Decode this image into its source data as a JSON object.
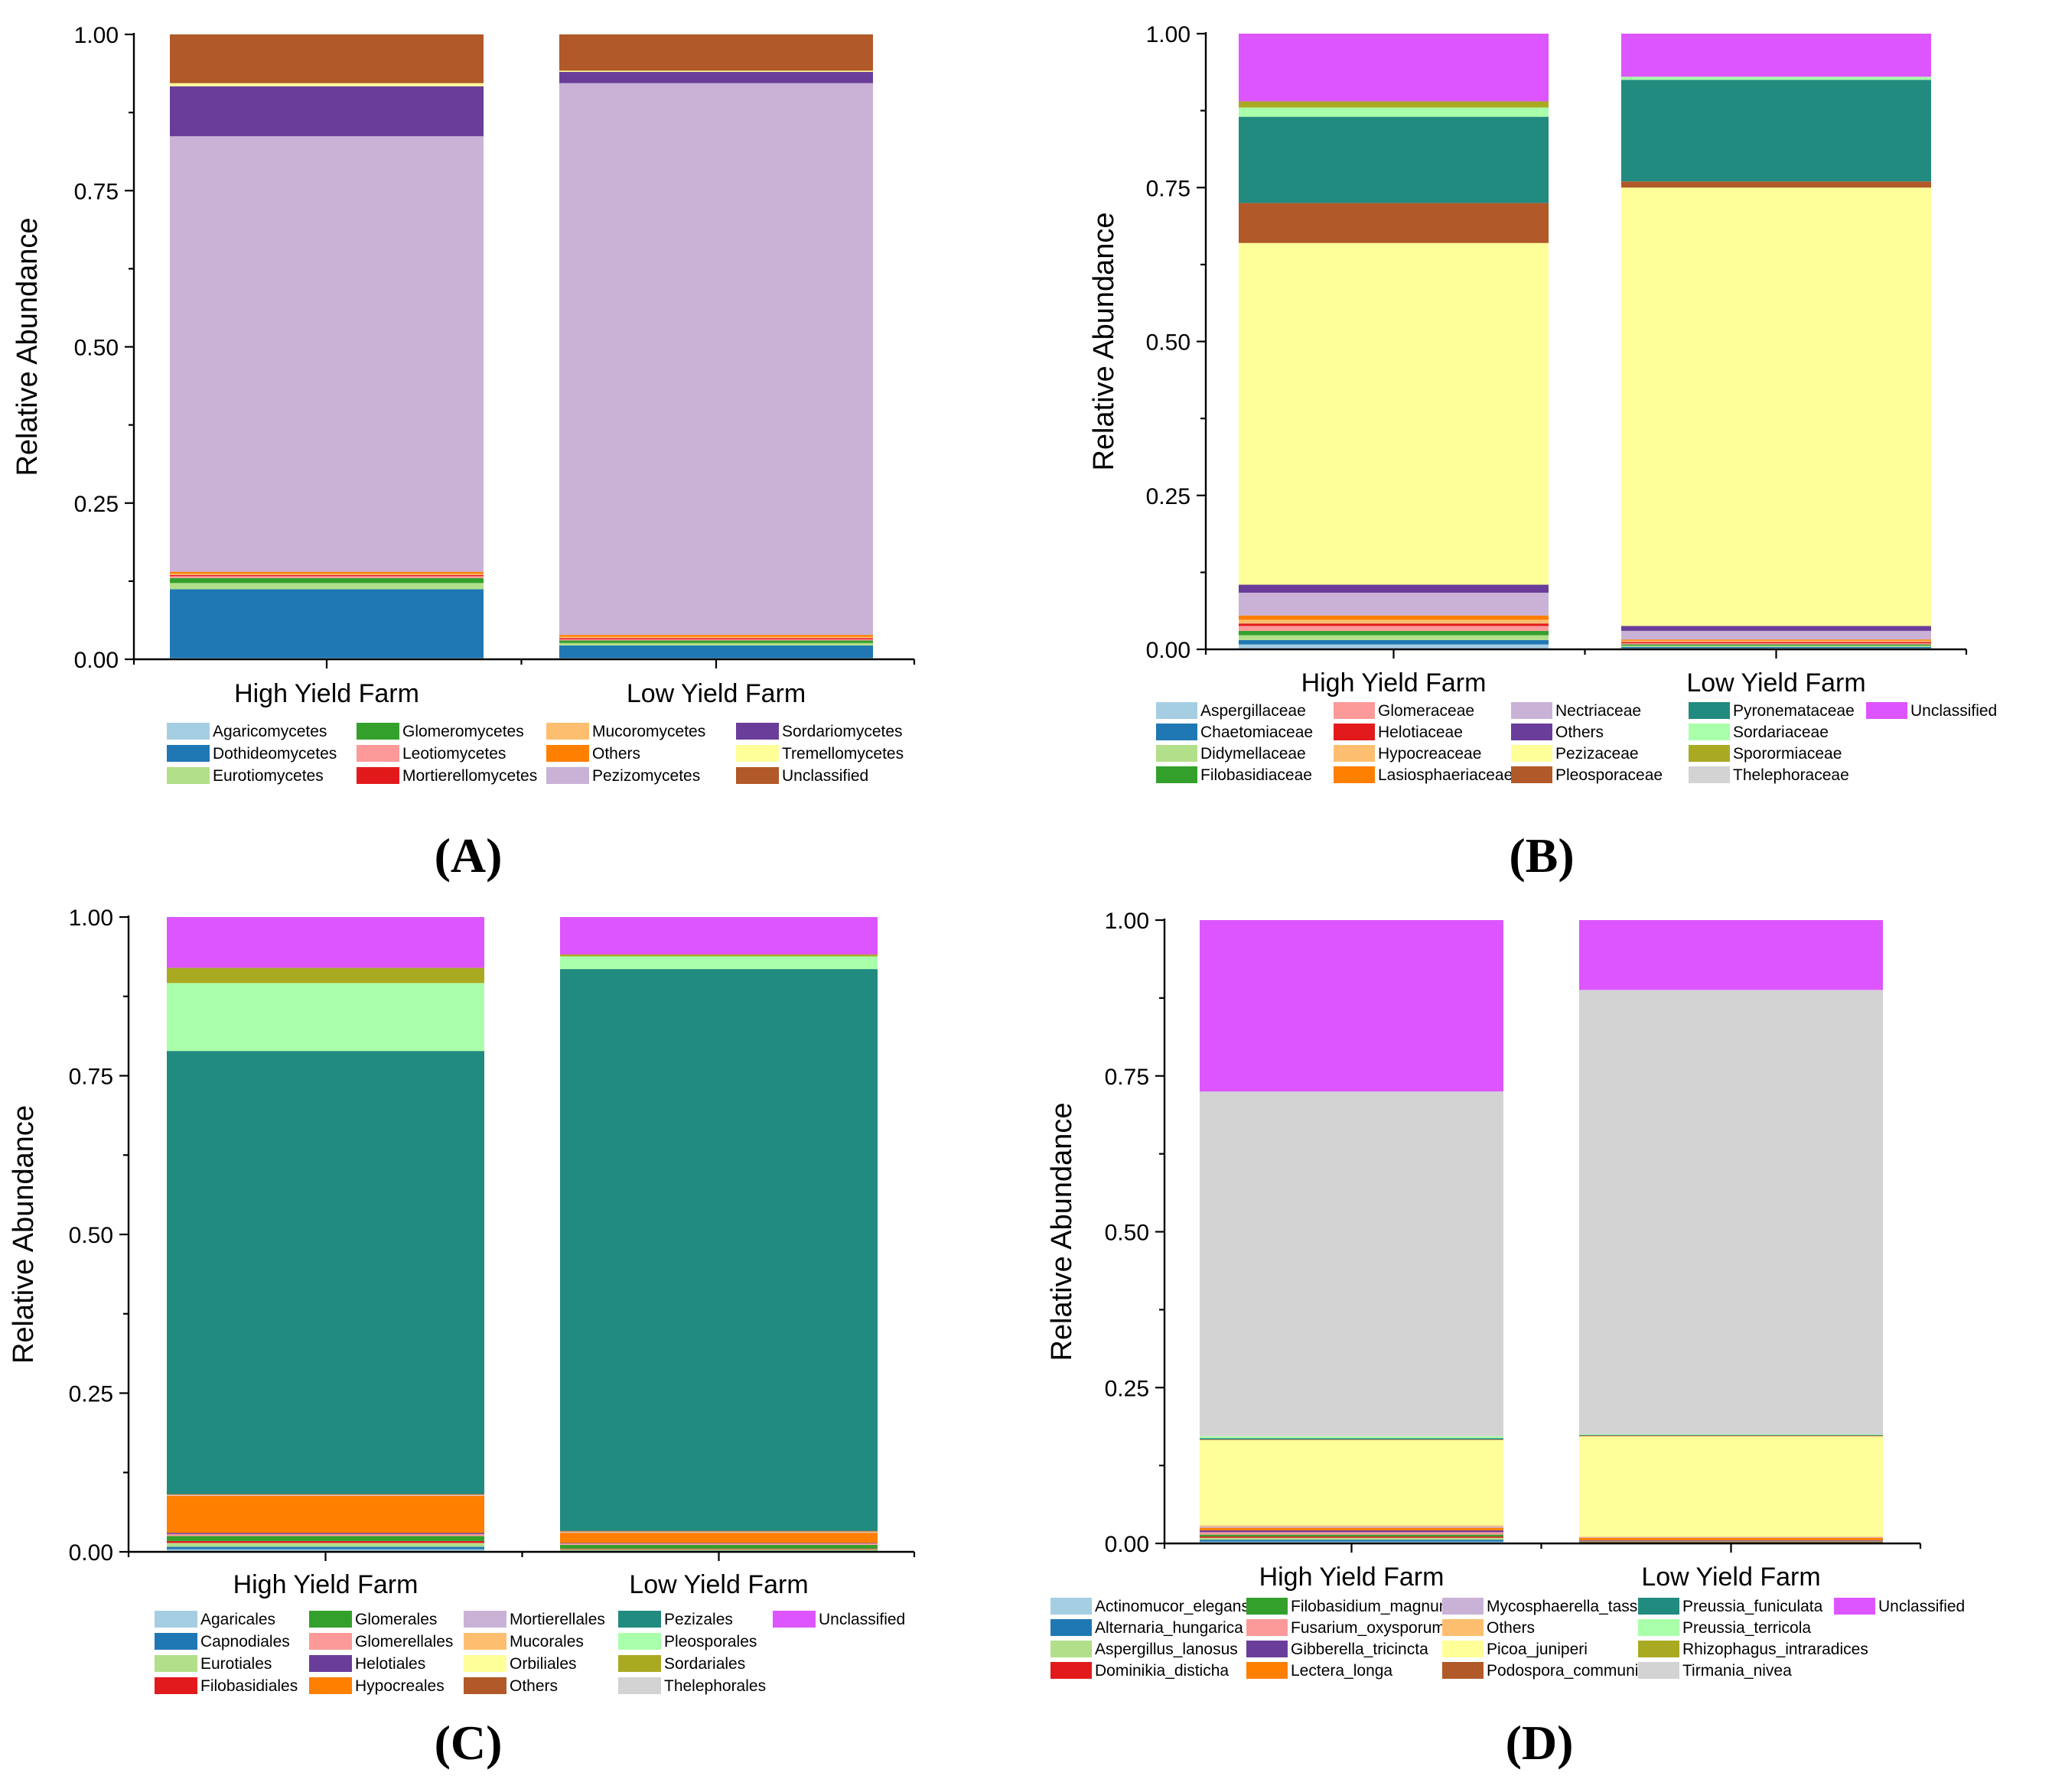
{
  "chart_data": [
    {
      "type": "bar",
      "panel_label": "(A)",
      "ylabel": "Relative Abundance",
      "ylim": [
        0,
        1
      ],
      "yticks": [
        "0.00",
        "0.25",
        "0.50",
        "0.75",
        "1.00"
      ],
      "stacked": true,
      "categories": [
        "High Yield Farm",
        "Low Yield Farm"
      ],
      "series": [
        {
          "name": "Agaricomycetes",
          "color": "#a6cee3",
          "values": [
            0.002,
            0.002
          ]
        },
        {
          "name": "Dothideomycetes",
          "color": "#1f78b4",
          "values": [
            0.11,
            0.02
          ]
        },
        {
          "name": "Eurotiomycetes",
          "color": "#b2df8a",
          "values": [
            0.01,
            0.004
          ]
        },
        {
          "name": "Glomeromycetes",
          "color": "#33a02c",
          "values": [
            0.008,
            0.004
          ]
        },
        {
          "name": "Leotiomycetes",
          "color": "#fb9a99",
          "values": [
            0.003,
            0.002
          ]
        },
        {
          "name": "Mortierellomycetes",
          "color": "#e31a1c",
          "values": [
            0.002,
            0.002
          ]
        },
        {
          "name": "Mucoromycetes",
          "color": "#fdbf6f",
          "values": [
            0.002,
            0.002
          ]
        },
        {
          "name": "Others",
          "color": "#ff7f00",
          "values": [
            0.003,
            0.003
          ]
        },
        {
          "name": "Pezizomycetes",
          "color": "#cab2d6",
          "values": [
            0.697,
            0.883
          ]
        },
        {
          "name": "Sordariomycetes",
          "color": "#6a3d9a",
          "values": [
            0.08,
            0.018
          ]
        },
        {
          "name": "Tremellomycetes",
          "color": "#ffff99",
          "values": [
            0.005,
            0.002
          ]
        },
        {
          "name": "Unclassified",
          "color": "#b15928",
          "values": [
            0.078,
            0.058
          ]
        }
      ]
    },
    {
      "type": "bar",
      "panel_label": "(B)",
      "ylabel": "Relative Abundance",
      "ylim": [
        0,
        1
      ],
      "yticks": [
        "0.00",
        "0.25",
        "0.50",
        "0.75",
        "1.00"
      ],
      "stacked": true,
      "categories": [
        "High Yield Farm",
        "Low Yield Farm"
      ],
      "series": [
        {
          "name": "Aspergillaceae",
          "color": "#a6cee3",
          "values": [
            0.008,
            0.002
          ]
        },
        {
          "name": "Chaetomiaceae",
          "color": "#1f78b4",
          "values": [
            0.007,
            0.002
          ]
        },
        {
          "name": "Didymellaceae",
          "color": "#b2df8a",
          "values": [
            0.008,
            0.002
          ]
        },
        {
          "name": "Filobasidiaceae",
          "color": "#33a02c",
          "values": [
            0.007,
            0.002
          ]
        },
        {
          "name": "Glomeraceae",
          "color": "#fb9a99",
          "values": [
            0.008,
            0.002
          ]
        },
        {
          "name": "Helotiaceae",
          "color": "#e31a1c",
          "values": [
            0.004,
            0.002
          ]
        },
        {
          "name": "Hypocreaceae",
          "color": "#fdbf6f",
          "values": [
            0.006,
            0.002
          ]
        },
        {
          "name": "Lasiosphaeriaceae",
          "color": "#ff7f00",
          "values": [
            0.007,
            0.002
          ]
        },
        {
          "name": "Nectriaceae",
          "color": "#cab2d6",
          "values": [
            0.037,
            0.014
          ]
        },
        {
          "name": "Others",
          "color": "#6a3d9a",
          "values": [
            0.013,
            0.008
          ]
        },
        {
          "name": "Pezizaceae",
          "color": "#ffff99",
          "values": [
            0.555,
            0.712
          ]
        },
        {
          "name": "Pleosporaceae",
          "color": "#b15928",
          "values": [
            0.065,
            0.01
          ]
        },
        {
          "name": "Pyronemataceae",
          "color": "#228b80",
          "values": [
            0.14,
            0.165
          ]
        },
        {
          "name": "Sordariaceae",
          "color": "#aaffaa",
          "values": [
            0.015,
            0.005
          ]
        },
        {
          "name": "Sporormiaceae",
          "color": "#aaaa22",
          "values": [
            0.01,
            0.0
          ]
        },
        {
          "name": "Thelephoraceae",
          "color": "#d3d3d3",
          "values": [
            0.0,
            0.0
          ]
        },
        {
          "name": "Unclassified",
          "color": "#dd55ff",
          "values": [
            0.11,
            0.07
          ]
        }
      ]
    },
    {
      "type": "bar",
      "panel_label": "(C)",
      "ylabel": "Relative Abundance",
      "ylim": [
        0,
        1
      ],
      "yticks": [
        "0.00",
        "0.25",
        "0.50",
        "0.75",
        "1.00"
      ],
      "stacked": true,
      "categories": [
        "High Yield Farm",
        "Low Yield Farm"
      ],
      "series": [
        {
          "name": "Agaricales",
          "color": "#a6cee3",
          "values": [
            0.004,
            0.001
          ]
        },
        {
          "name": "Capnodiales",
          "color": "#1f78b4",
          "values": [
            0.004,
            0.001
          ]
        },
        {
          "name": "Eurotiales",
          "color": "#b2df8a",
          "values": [
            0.006,
            0.002
          ]
        },
        {
          "name": "Filobasidiales",
          "color": "#e31a1c",
          "values": [
            0.003,
            0.001
          ]
        },
        {
          "name": "Glomerales",
          "color": "#33a02c",
          "values": [
            0.008,
            0.006
          ]
        },
        {
          "name": "Glomerellales",
          "color": "#fb9a99",
          "values": [
            0.003,
            0.002
          ]
        },
        {
          "name": "Helotiales",
          "color": "#6a3d9a",
          "values": [
            0.002,
            0.001
          ]
        },
        {
          "name": "Hypocreales",
          "color": "#ff7f00",
          "values": [
            0.058,
            0.016
          ]
        },
        {
          "name": "Mortierellales",
          "color": "#cab2d6",
          "values": [
            0.001,
            0.001
          ]
        },
        {
          "name": "Mucorales",
          "color": "#fdbf6f",
          "values": [
            0.001,
            0.001
          ]
        },
        {
          "name": "Orbiliales",
          "color": "#ffff99",
          "values": [
            0.0,
            0.0
          ]
        },
        {
          "name": "Others",
          "color": "#b15928",
          "values": [
            0.001,
            0.001
          ]
        },
        {
          "name": "Pezizales",
          "color": "#228b80",
          "values": [
            0.698,
            0.885
          ]
        },
        {
          "name": "Pleosporales",
          "color": "#aaffaa",
          "values": [
            0.107,
            0.02
          ]
        },
        {
          "name": "Sordariales",
          "color": "#aaaa22",
          "values": [
            0.024,
            0.003
          ]
        },
        {
          "name": "Thelephorales",
          "color": "#d3d3d3",
          "values": [
            0.0,
            0.0
          ]
        },
        {
          "name": "Unclassified",
          "color": "#dd55ff",
          "values": [
            0.08,
            0.059
          ]
        }
      ]
    },
    {
      "type": "bar",
      "panel_label": "(D)",
      "ylabel": "Relative Abundance",
      "ylim": [
        0,
        1
      ],
      "yticks": [
        "0.00",
        "0.25",
        "0.50",
        "0.75",
        "1.00"
      ],
      "stacked": true,
      "categories": [
        "High Yield Farm",
        "Low Yield Farm"
      ],
      "series": [
        {
          "name": "Actinomucor_elegans",
          "color": "#a6cee3",
          "values": [
            0.003,
            0.0
          ]
        },
        {
          "name": "Alternaria_hungarica",
          "color": "#1f78b4",
          "values": [
            0.003,
            0.0
          ]
        },
        {
          "name": "Aspergillus_lanosus",
          "color": "#b2df8a",
          "values": [
            0.003,
            0.0
          ]
        },
        {
          "name": "Dominikia_disticha",
          "color": "#e31a1c",
          "values": [
            0.002,
            0.002
          ]
        },
        {
          "name": "Filobasidium_magnum",
          "color": "#33a02c",
          "values": [
            0.003,
            0.001
          ]
        },
        {
          "name": "Fusarium_oxysporum",
          "color": "#fb9a99",
          "values": [
            0.004,
            0.001
          ]
        },
        {
          "name": "Gibberella_tricincta",
          "color": "#6a3d9a",
          "values": [
            0.003,
            0.001
          ]
        },
        {
          "name": "Lectera_longa",
          "color": "#ff7f00",
          "values": [
            0.004,
            0.004
          ]
        },
        {
          "name": "Mycosphaerella_tassiana",
          "color": "#cab2d6",
          "values": [
            0.002,
            0.001
          ]
        },
        {
          "name": "Others",
          "color": "#fdbf6f",
          "values": [
            0.002,
            0.001
          ]
        },
        {
          "name": "Picoa_juniperi",
          "color": "#ffff99",
          "values": [
            0.137,
            0.161
          ]
        },
        {
          "name": "Podospora_communis",
          "color": "#b15928",
          "values": [
            0.001,
            0.001
          ]
        },
        {
          "name": "Preussia_funiculata",
          "color": "#228b80",
          "values": [
            0.002,
            0.001
          ]
        },
        {
          "name": "Preussia_terricola",
          "color": "#aaffaa",
          "values": [
            0.003,
            0.001
          ]
        },
        {
          "name": "Rhizophagus_intraradices",
          "color": "#aaaa22",
          "values": [
            0.0,
            0.0
          ]
        },
        {
          "name": "Tirmania_nivea",
          "color": "#d3d3d3",
          "values": [
            0.553,
            0.713
          ]
        },
        {
          "name": "Unclassified",
          "color": "#dd55ff",
          "values": [
            0.275,
            0.112
          ]
        }
      ]
    }
  ]
}
